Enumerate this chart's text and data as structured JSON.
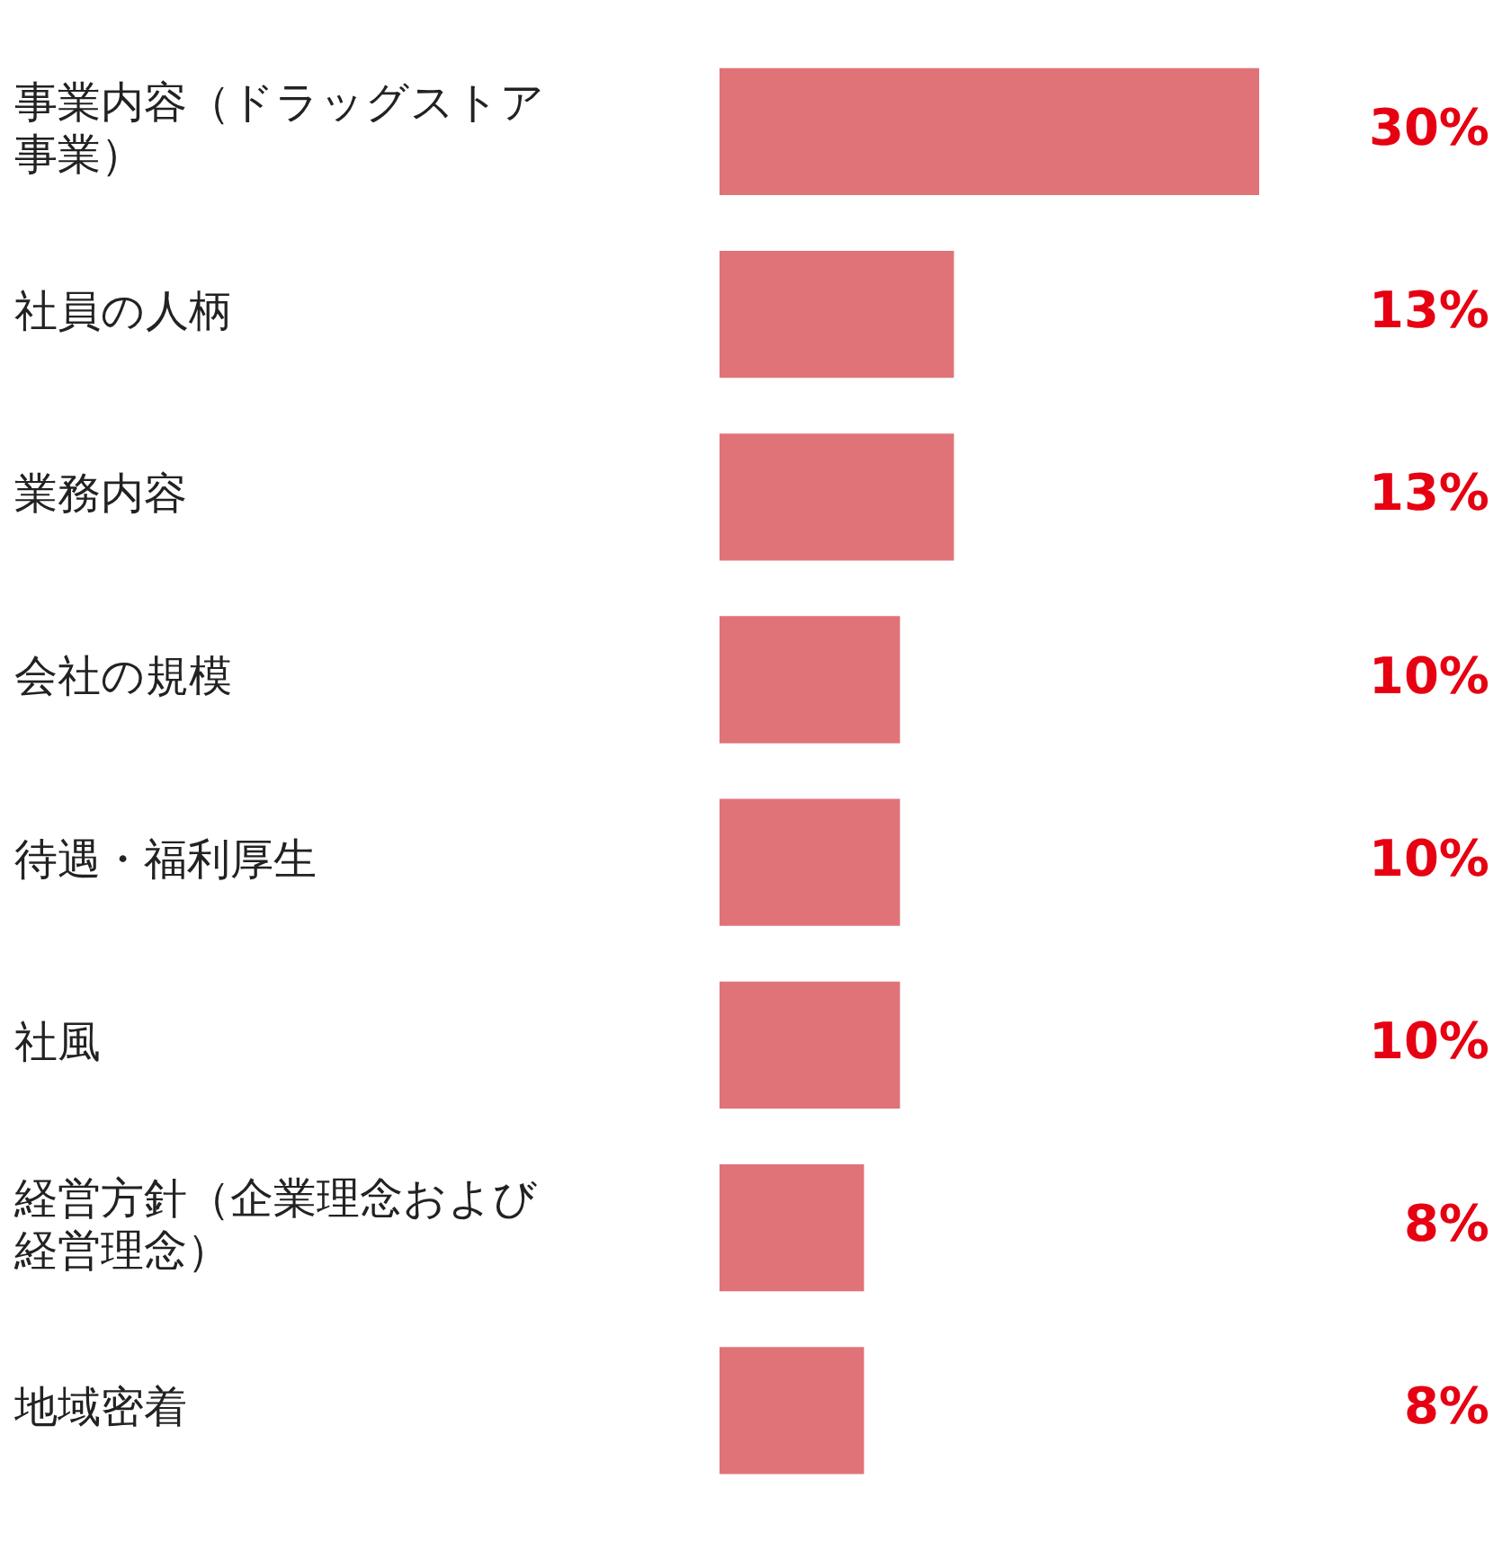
{
  "chart_data": {
    "type": "bar",
    "orientation": "horizontal",
    "categories": [
      "事業内容（ドラッグストア事業）",
      "社員の人柄",
      "業務内容",
      "会社の規模",
      "待遇・福利厚生",
      "社風",
      "経営方針（企業理念および経営理念）",
      "地域密着"
    ],
    "values": [
      30,
      13,
      13,
      10,
      10,
      10,
      8,
      8
    ],
    "value_labels": [
      "30%",
      "13%",
      "13%",
      "10%",
      "10%",
      "10%",
      "8%",
      "8%"
    ],
    "color": "#e07378",
    "xlim": [
      0,
      30
    ],
    "tick_labels": "y",
    "legend": false
  }
}
